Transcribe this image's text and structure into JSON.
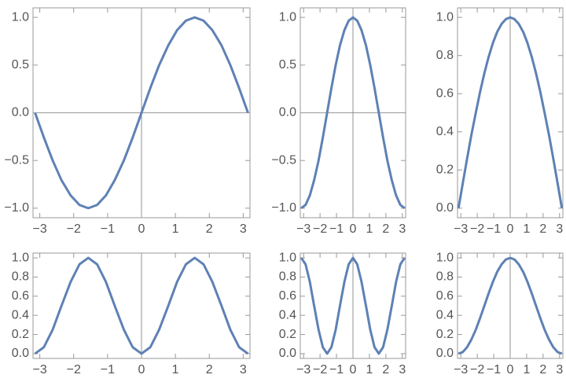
{
  "chart_data": [
    {
      "type": "line",
      "color": "#5e81b5",
      "x": [
        -3.14,
        -2.88,
        -2.62,
        -2.36,
        -2.09,
        -1.83,
        -1.57,
        -1.31,
        -1.05,
        -0.79,
        -0.52,
        -0.26,
        0,
        0.26,
        0.52,
        0.79,
        1.05,
        1.31,
        1.57,
        1.83,
        2.09,
        2.36,
        2.62,
        2.88,
        3.14
      ],
      "values": [
        0,
        -0.259,
        -0.5,
        -0.707,
        -0.866,
        -0.966,
        -1,
        -0.966,
        -0.866,
        -0.707,
        -0.5,
        -0.259,
        0,
        0.259,
        0.5,
        0.707,
        0.866,
        0.966,
        1,
        0.966,
        0.866,
        0.707,
        0.5,
        0.259,
        0
      ],
      "xlim": [
        -3.2,
        3.2
      ],
      "ylim": [
        -1.1,
        1.1
      ],
      "xticks": [
        {
          "value": -3,
          "label": "−3"
        },
        {
          "value": -2,
          "label": "−2"
        },
        {
          "value": -1,
          "label": "−1"
        },
        0,
        1,
        2,
        3
      ],
      "yticks": [
        {
          "value": -1,
          "label": "−1.0"
        },
        {
          "value": -0.5,
          "label": "−0.5"
        },
        {
          "value": 0,
          "label": "0.0"
        },
        0.5,
        {
          "value": 1,
          "label": "1.0"
        }
      ]
    },
    {
      "type": "line",
      "color": "#5e81b5",
      "x": [
        -3.14,
        -2.88,
        -2.62,
        -2.36,
        -2.09,
        -1.83,
        -1.57,
        -1.31,
        -1.05,
        -0.79,
        -0.52,
        -0.26,
        0,
        0.26,
        0.52,
        0.79,
        1.05,
        1.31,
        1.57,
        1.83,
        2.09,
        2.36,
        2.62,
        2.88,
        3.14
      ],
      "values": [
        -1,
        -0.966,
        -0.866,
        -0.707,
        -0.5,
        -0.259,
        0,
        0.259,
        0.5,
        0.707,
        0.866,
        0.966,
        1,
        0.966,
        0.866,
        0.707,
        0.5,
        0.259,
        0,
        -0.259,
        -0.5,
        -0.707,
        -0.866,
        -0.966,
        -1
      ],
      "xlim": [
        -3.2,
        3.2
      ],
      "ylim": [
        -1.1,
        1.1
      ],
      "xticks": [
        {
          "value": -3,
          "label": "−3"
        },
        {
          "value": -2,
          "label": "−2"
        },
        {
          "value": -1,
          "label": "−1"
        },
        0,
        1,
        2,
        3
      ],
      "yticks": [
        {
          "value": -1,
          "label": "−1.0"
        },
        {
          "value": -0.5,
          "label": "−0.5"
        },
        {
          "value": 0,
          "label": "0.0"
        },
        0.5,
        {
          "value": 1,
          "label": "1.0"
        }
      ]
    },
    {
      "type": "line",
      "color": "#5e81b5",
      "x": [
        -3.14,
        -2.88,
        -2.62,
        -2.36,
        -2.09,
        -1.83,
        -1.57,
        -1.31,
        -1.05,
        -0.79,
        -0.52,
        -0.26,
        0,
        0.26,
        0.52,
        0.79,
        1.05,
        1.31,
        1.57,
        1.83,
        2.09,
        2.36,
        2.62,
        2.88,
        3.14
      ],
      "values": [
        0,
        0.131,
        0.259,
        0.383,
        0.5,
        0.609,
        0.707,
        0.793,
        0.866,
        0.924,
        0.966,
        0.991,
        1,
        0.991,
        0.966,
        0.924,
        0.866,
        0.793,
        0.707,
        0.609,
        0.5,
        0.383,
        0.259,
        0.131,
        0
      ],
      "xlim": [
        -3.2,
        3.2
      ],
      "ylim": [
        -0.05,
        1.05
      ],
      "xticks": [
        {
          "value": -3,
          "label": "−3"
        },
        {
          "value": -2,
          "label": "−2"
        },
        {
          "value": -1,
          "label": "−1"
        },
        0,
        1,
        2,
        3
      ],
      "yticks": [
        {
          "value": 0,
          "label": "0.0"
        },
        0.2,
        0.4,
        0.6,
        0.8,
        {
          "value": 1,
          "label": "1.0"
        }
      ]
    },
    {
      "type": "line",
      "color": "#5e81b5",
      "x": [
        -3.14,
        -2.88,
        -2.62,
        -2.36,
        -2.09,
        -1.83,
        -1.57,
        -1.31,
        -1.05,
        -0.79,
        -0.52,
        -0.26,
        0,
        0.26,
        0.52,
        0.79,
        1.05,
        1.31,
        1.57,
        1.83,
        2.09,
        2.36,
        2.62,
        2.88,
        3.14
      ],
      "values": [
        0,
        0.067,
        0.25,
        0.5,
        0.75,
        0.933,
        1,
        0.933,
        0.75,
        0.5,
        0.25,
        0.067,
        0,
        0.067,
        0.25,
        0.5,
        0.75,
        0.933,
        1,
        0.933,
        0.75,
        0.5,
        0.25,
        0.067,
        0
      ],
      "xlim": [
        -3.2,
        3.2
      ],
      "ylim": [
        -0.05,
        1.05
      ],
      "xticks": [
        {
          "value": -3,
          "label": "−3"
        },
        {
          "value": -2,
          "label": "−2"
        },
        {
          "value": -1,
          "label": "−1"
        },
        0,
        1,
        2,
        3
      ],
      "yticks": [
        {
          "value": 0,
          "label": "0.0"
        },
        0.2,
        0.4,
        0.6,
        0.8,
        {
          "value": 1,
          "label": "1.0"
        }
      ]
    },
    {
      "type": "line",
      "color": "#5e81b5",
      "x": [
        -3.14,
        -2.88,
        -2.62,
        -2.36,
        -2.09,
        -1.83,
        -1.57,
        -1.31,
        -1.05,
        -0.79,
        -0.52,
        -0.26,
        0,
        0.26,
        0.52,
        0.79,
        1.05,
        1.31,
        1.57,
        1.83,
        2.09,
        2.36,
        2.62,
        2.88,
        3.14
      ],
      "values": [
        1,
        0.933,
        0.75,
        0.5,
        0.25,
        0.067,
        0,
        0.067,
        0.25,
        0.5,
        0.75,
        0.933,
        1,
        0.933,
        0.75,
        0.5,
        0.25,
        0.067,
        0,
        0.067,
        0.25,
        0.5,
        0.75,
        0.933,
        1
      ],
      "xlim": [
        -3.2,
        3.2
      ],
      "ylim": [
        -0.05,
        1.05
      ],
      "xticks": [
        {
          "value": -3,
          "label": "−3"
        },
        {
          "value": -2,
          "label": "−2"
        },
        {
          "value": -1,
          "label": "−1"
        },
        0,
        1,
        2,
        3
      ],
      "yticks": [
        {
          "value": 0,
          "label": "0.0"
        },
        0.2,
        0.4,
        0.6,
        0.8,
        {
          "value": 1,
          "label": "1.0"
        }
      ]
    },
    {
      "type": "line",
      "color": "#5e81b5",
      "x": [
        -3.14,
        -2.88,
        -2.62,
        -2.36,
        -2.09,
        -1.83,
        -1.57,
        -1.31,
        -1.05,
        -0.79,
        -0.52,
        -0.26,
        0,
        0.26,
        0.52,
        0.79,
        1.05,
        1.31,
        1.57,
        1.83,
        2.09,
        2.36,
        2.62,
        2.88,
        3.14
      ],
      "values": [
        0,
        0.017,
        0.067,
        0.146,
        0.25,
        0.371,
        0.5,
        0.629,
        0.75,
        0.854,
        0.933,
        0.983,
        1,
        0.983,
        0.933,
        0.854,
        0.75,
        0.629,
        0.5,
        0.371,
        0.25,
        0.146,
        0.067,
        0.017,
        0
      ],
      "xlim": [
        -3.2,
        3.2
      ],
      "ylim": [
        -0.05,
        1.05
      ],
      "xticks": [
        {
          "value": -3,
          "label": "−3"
        },
        {
          "value": -2,
          "label": "−2"
        },
        {
          "value": -1,
          "label": "−1"
        },
        0,
        1,
        2,
        3
      ],
      "yticks": [
        {
          "value": 0,
          "label": "0.0"
        },
        0.2,
        0.4,
        0.6,
        0.8,
        {
          "value": 1,
          "label": "1.0"
        }
      ]
    }
  ]
}
